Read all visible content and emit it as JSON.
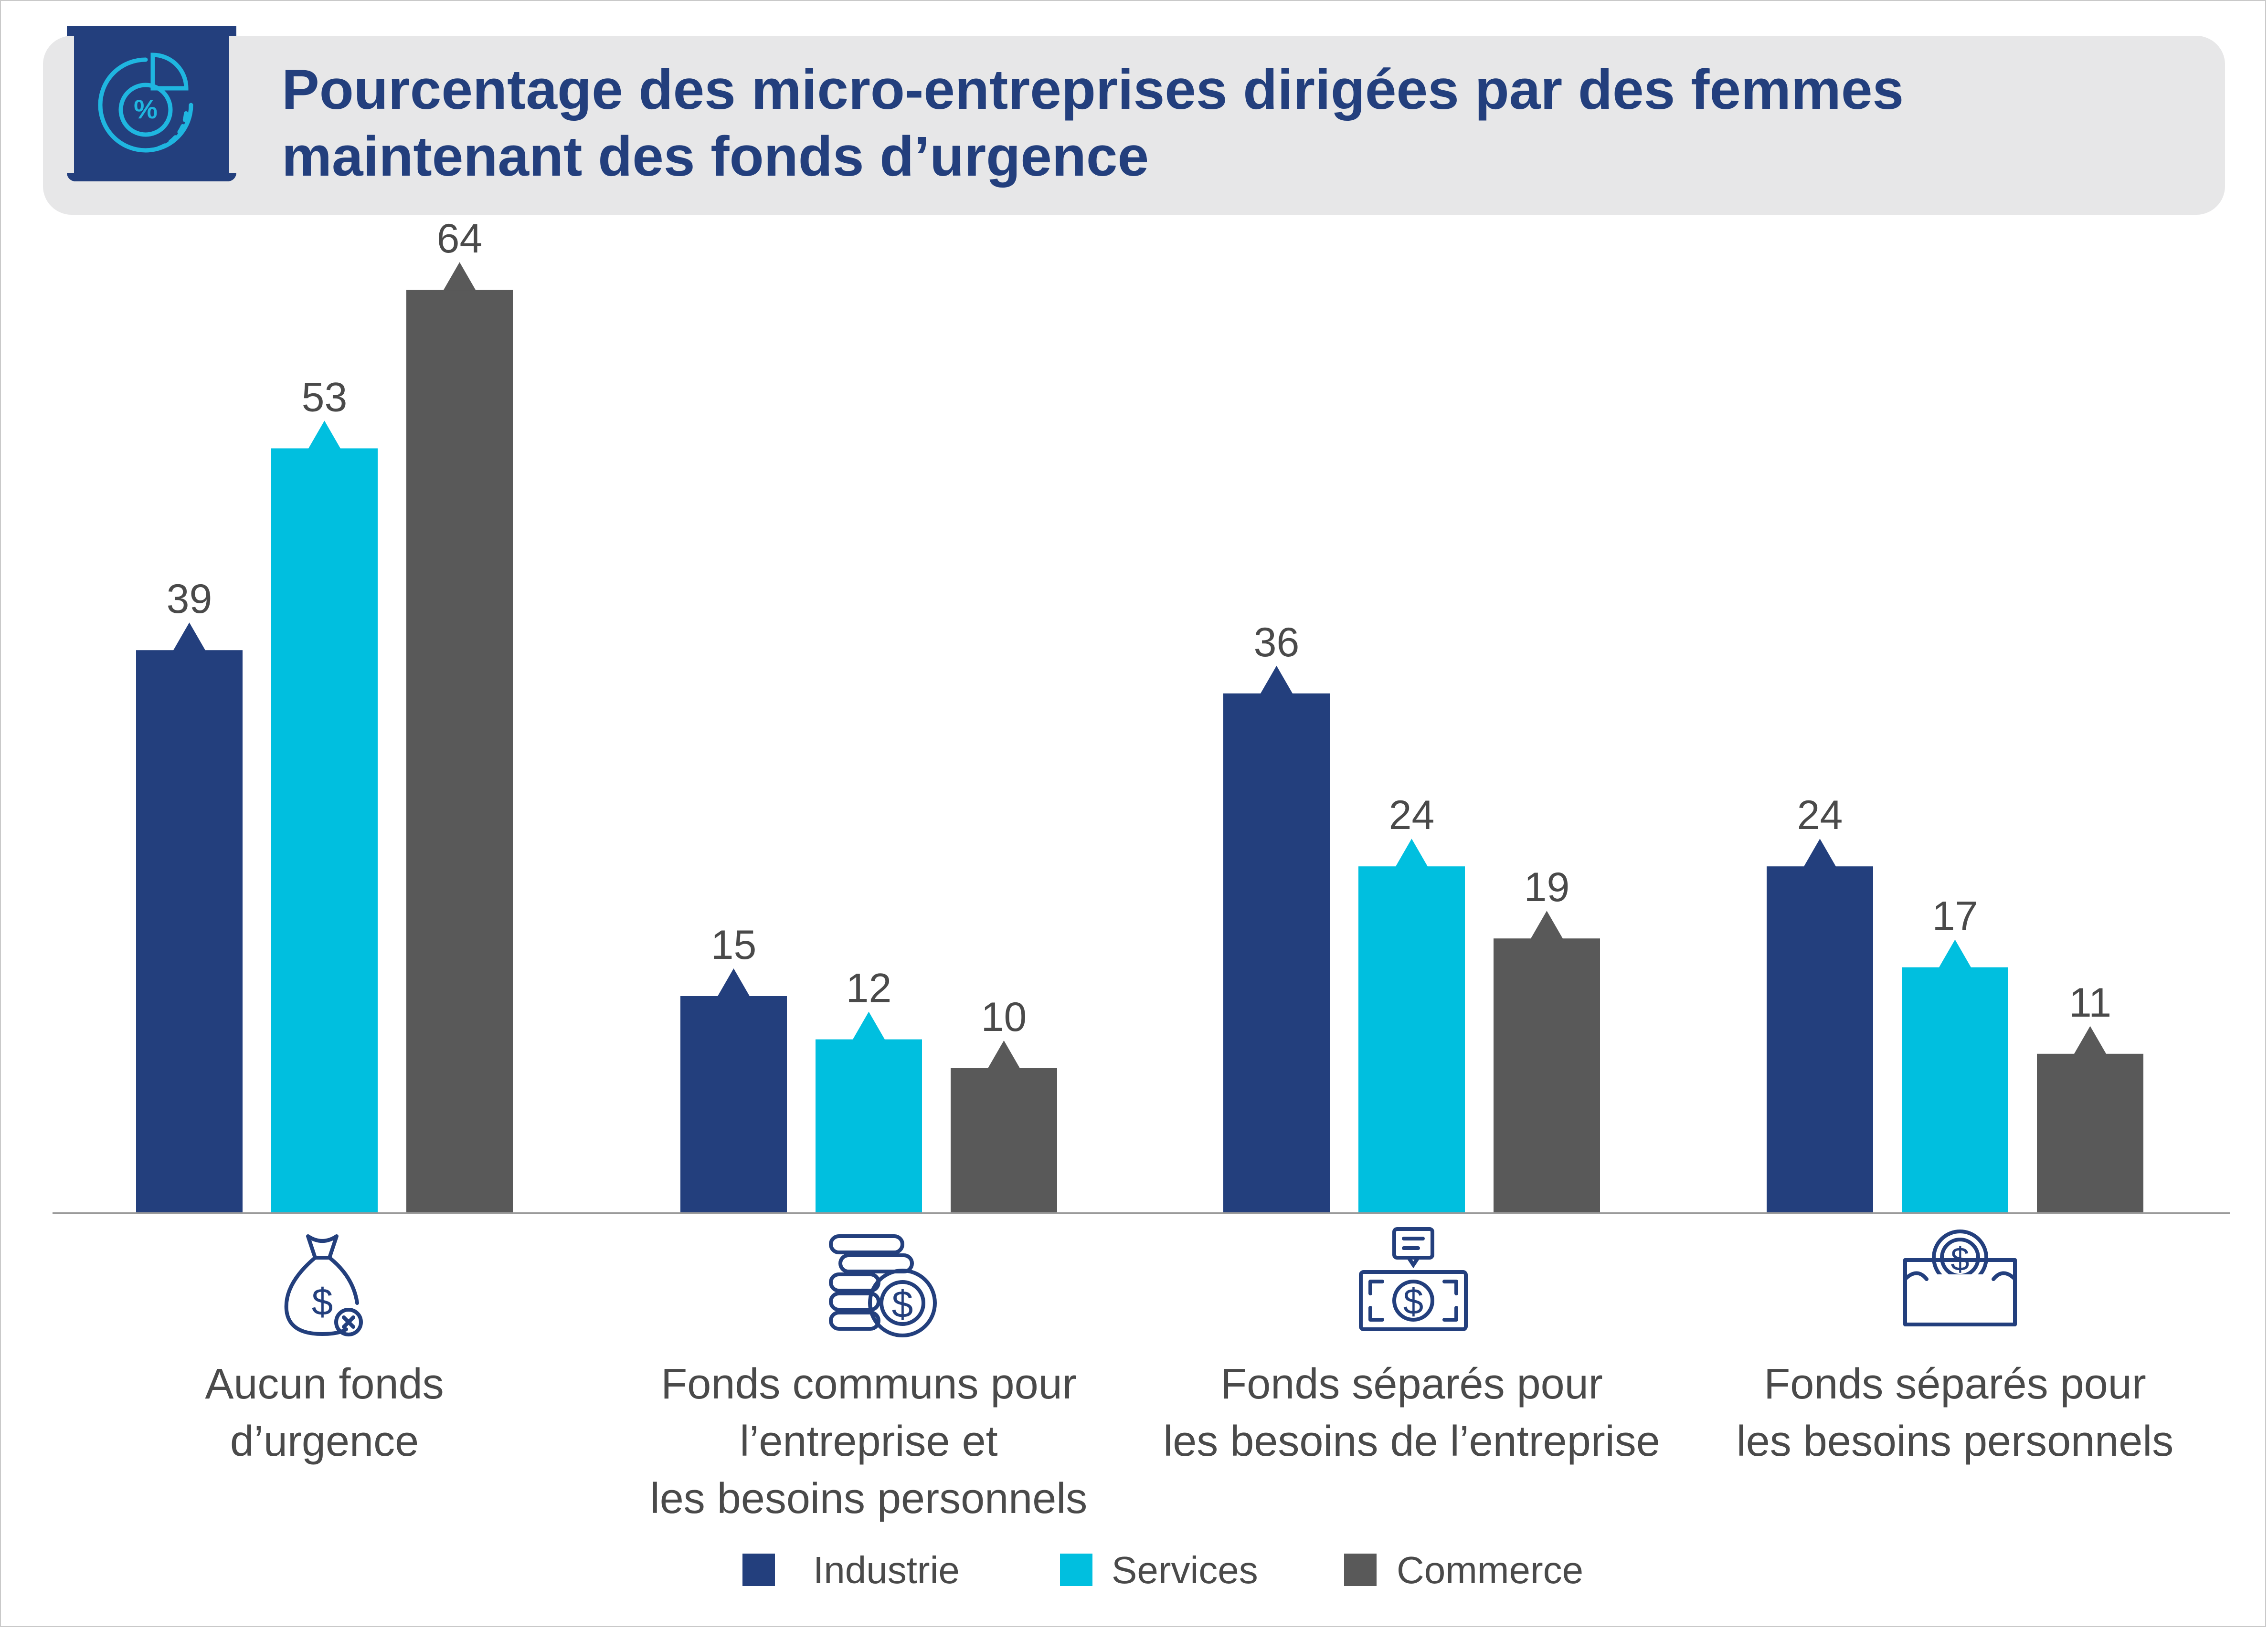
{
  "title": "Pourcentage des micro-entreprises dirigées par des femmes maintenant des fonds d’urgence",
  "title_icon": "percent-chart-icon",
  "colors": {
    "industrie": "#233f7d",
    "services": "#00bfdf",
    "commerce": "#595959",
    "text": "#4a4a4a",
    "title": "#233f7d",
    "axis": "#9a9a9a"
  },
  "chart_data": {
    "type": "bar",
    "title": "Pourcentage des micro-entreprises dirigées par des femmes maintenant des fonds d’urgence",
    "categories": [
      "Aucun fonds d’urgence",
      "Fonds communs pour l’entreprise et les besoins personnels",
      "Fonds séparés pour les besoins de l’entreprise",
      "Fonds séparés pour les besoins personnels"
    ],
    "category_lines": [
      [
        "Aucun fonds",
        "d’urgence"
      ],
      [
        "Fonds communs pour",
        "l’entreprise et",
        "les besoins personnels"
      ],
      [
        "Fonds séparés pour",
        "les besoins de l’entreprise"
      ],
      [
        "Fonds séparés pour",
        "les besoins personnels"
      ]
    ],
    "category_icons": [
      "money-bag-x-icon",
      "coin-stack-dollar-icon",
      "banknote-dollar-icon",
      "wallet-dollar-icon"
    ],
    "series": [
      {
        "name": "Industrie",
        "color": "#233f7d",
        "values": [
          39,
          15,
          36,
          24
        ]
      },
      {
        "name": "Services",
        "color": "#00bfdf",
        "values": [
          53,
          12,
          24,
          17
        ]
      },
      {
        "name": "Commerce",
        "color": "#595959",
        "values": [
          64,
          10,
          19,
          11
        ]
      }
    ],
    "xlabel": "",
    "ylabel": "",
    "ylim": [
      0,
      70
    ],
    "grid": false,
    "data_labels": true,
    "legend_position": "bottom"
  },
  "legend": [
    "Industrie",
    "Services",
    "Commerce"
  ]
}
